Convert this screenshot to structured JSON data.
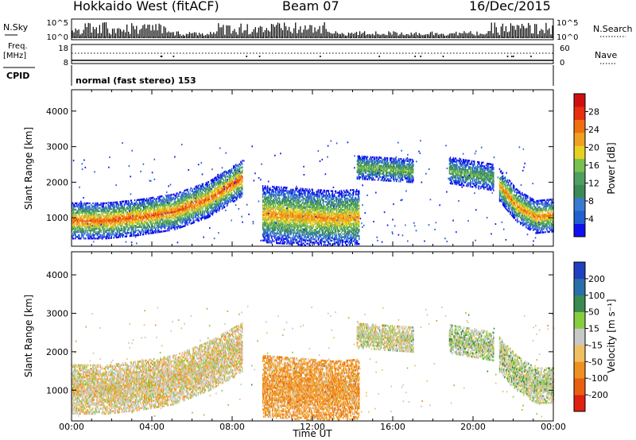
{
  "header": {
    "station": "Hokkaido West (fitACF)",
    "beam": "Beam 07",
    "date": "16/Dec/2015"
  },
  "top_panels": {
    "nsky_label": "N.Sky",
    "nsearch_label": "N.Search",
    "count_ticks_left": [
      "10^5",
      "10^0"
    ],
    "count_ticks_right": [
      "10^5",
      "10^0"
    ],
    "freq_label_1": "Freq.",
    "freq_label_2": "[MHz]",
    "freq_ticks": [
      "18",
      "8"
    ],
    "nave_label": "Nave",
    "nave_ticks": [
      "60",
      "0"
    ],
    "cpid_label": "CPID",
    "cpid_text": "normal (fast stereo) 153"
  },
  "chart_data": [
    {
      "type": "heatmap",
      "name": "power",
      "ylabel": "Slant Range [km]",
      "yticks": [
        "1000",
        "2000",
        "3000",
        "4000"
      ],
      "ylim": [
        200,
        4600
      ],
      "xlim": [
        0,
        24
      ],
      "colorbar": {
        "label": "Power [dB]",
        "ticks": [
          "4",
          "8",
          "12",
          "16",
          "20",
          "24",
          "28"
        ],
        "range": [
          0,
          32
        ],
        "colors": [
          "#1010ee",
          "#2060d0",
          "#3a7ad0",
          "#3b8a58",
          "#4f9f60",
          "#78c050",
          "#e8d020",
          "#f0a020",
          "#f07010",
          "#e83010",
          "#d01010"
        ]
      },
      "regions": [
        {
          "t": [
            0.0,
            8.5
          ],
          "center": [
            900,
            900,
            1000,
            1150,
            1500,
            2100
          ],
          "width": 420,
          "peak": 26
        },
        {
          "t": [
            9.5,
            14.3
          ],
          "center": [
            1100,
            1050,
            1000,
            950,
            1000
          ],
          "width": 650,
          "peak": 23
        },
        {
          "t": [
            14.2,
            17.0
          ],
          "center": [
            2400,
            2350,
            2300
          ],
          "width": 280,
          "peak": 16
        },
        {
          "t": [
            18.8,
            21.0
          ],
          "center": [
            2300,
            2200,
            2100
          ],
          "width": 300,
          "peak": 15
        },
        {
          "t": [
            21.3,
            24.0
          ],
          "center": [
            1900,
            1300,
            1000,
            1050
          ],
          "width": 380,
          "peak": 24
        }
      ]
    },
    {
      "type": "heatmap",
      "name": "velocity",
      "xlabel": "Time UT",
      "ylabel": "Slant Range [km]",
      "xticks": [
        "00:00",
        "04:00",
        "08:00",
        "12:00",
        "16:00",
        "20:00",
        "00:00"
      ],
      "yticks": [
        "1000",
        "2000",
        "3000",
        "4000"
      ],
      "ylim": [
        200,
        4600
      ],
      "xlim": [
        0,
        24
      ],
      "colorbar": {
        "label": "Velocity [m s⁻¹]",
        "ticks": [
          "200",
          "100",
          "50",
          "15",
          "-15",
          "-50",
          "-100",
          "-200"
        ],
        "colors": [
          "#2040c0",
          "#2a6ea8",
          "#3a8a50",
          "#88cc40",
          "#c8c8c8",
          "#f0c060",
          "#f09020",
          "#e86010",
          "#e02010"
        ]
      },
      "regions": [
        {
          "t": [
            0.0,
            8.5
          ],
          "center": [
            1000,
            1000,
            1100,
            1250,
            1600,
            2100
          ],
          "width": 520,
          "mean": -10
        },
        {
          "t": [
            9.5,
            14.3
          ],
          "center": [
            1100,
            1050,
            1000,
            950,
            1000
          ],
          "width": 650,
          "mean": -45
        },
        {
          "t": [
            14.2,
            17.0
          ],
          "center": [
            2400,
            2350,
            2300
          ],
          "width": 280,
          "mean": 0
        },
        {
          "t": [
            18.8,
            21.0
          ],
          "center": [
            2300,
            2200,
            2100
          ],
          "width": 300,
          "mean": 10
        },
        {
          "t": [
            21.3,
            24.0
          ],
          "center": [
            1900,
            1400,
            1100,
            1100
          ],
          "width": 380,
          "mean": 5
        }
      ]
    }
  ]
}
